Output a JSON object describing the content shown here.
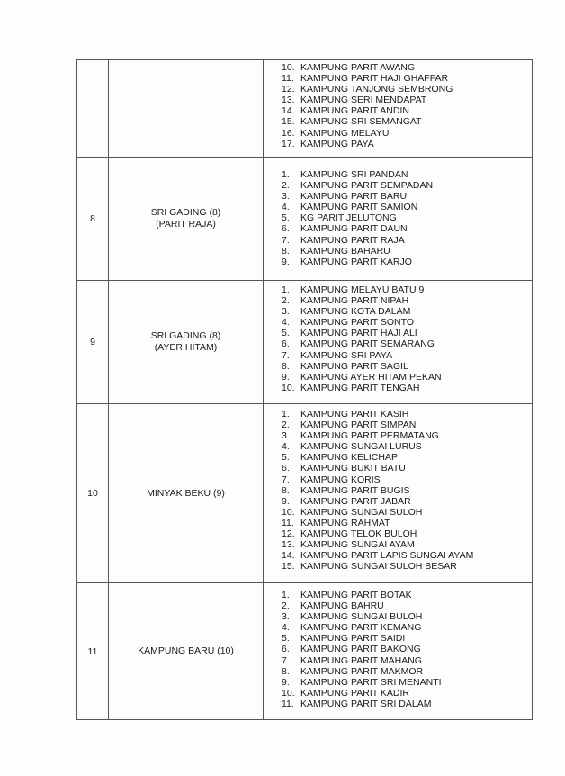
{
  "rows": [
    {
      "no": "",
      "area": [
        "",
        ""
      ],
      "pad": 2,
      "height": 108,
      "villages": [
        [
          "10.",
          "KAMPUNG PARIT AWANG"
        ],
        [
          "11.",
          "KAMPUNG PARIT HAJI GHAFFAR"
        ],
        [
          "12.",
          "KAMPUNG TANJONG SEMBRONG"
        ],
        [
          "13.",
          "KAMPUNG SERI MENDAPAT"
        ],
        [
          "14.",
          "KAMPUNG PARIT ANDIN"
        ],
        [
          "15.",
          "KAMPUNG SRI SEMANGAT"
        ],
        [
          "16.",
          "KAMPUNG MELAYU"
        ],
        [
          "17.",
          "KAMPUNG PAYA"
        ]
      ]
    },
    {
      "no": "8",
      "area": [
        "SRI GADING (8)",
        "(PARIT RAJA)"
      ],
      "pad": 13,
      "height": 137,
      "villages": [
        [
          "1.",
          "KAMPUNG SRI PANDAN"
        ],
        [
          "2.",
          "KAMPUNG PARIT SEMPADAN"
        ],
        [
          "3.",
          "KAMPUNG PARIT BARU"
        ],
        [
          "4.",
          "KAMPUNG PARIT SAMION"
        ],
        [
          "5.",
          "KG PARIT JELUTONG"
        ],
        [
          "6.",
          "KAMPUNG PARIT DAUN"
        ],
        [
          "7.",
          "KAMPUNG PARIT RAJA"
        ],
        [
          "8.",
          "KAMPUNG BAHARU"
        ],
        [
          "9.",
          "KAMPUNG PARIT KARJO"
        ]
      ]
    },
    {
      "no": "9",
      "area": [
        "SRI GADING (8)",
        "(AYER HITAM)"
      ],
      "pad": 4,
      "height": 137,
      "villages": [
        [
          "1.",
          "KAMPUNG MELAYU BATU 9"
        ],
        [
          "2.",
          "KAMPUNG PARIT NIPAH"
        ],
        [
          "3.",
          "KAMPUNG KOTA DALAM"
        ],
        [
          "4.",
          "KAMPUNG PARIT SONTO"
        ],
        [
          "5.",
          "KAMPUNG PARIT HAJI ALI"
        ],
        [
          "6.",
          "KAMPUNG PARIT SEMARANG"
        ],
        [
          "7.",
          "KAMPUNG SRI PAYA"
        ],
        [
          "8.",
          "KAMPUNG PARIT SAGIL"
        ],
        [
          "9.",
          "KAMPUNG AYER HITAM PEKAN"
        ],
        [
          "10.",
          "KAMPUNG PARIT TENGAH"
        ]
      ]
    },
    {
      "no": "10",
      "area": [
        "MINYAK BEKU (9)",
        ""
      ],
      "pad": 5,
      "height": 199,
      "villages": [
        [
          "1.",
          "KAMPUNG PARIT KASIH"
        ],
        [
          "2.",
          "KAMPUNG PARIT SIMPAN"
        ],
        [
          "3.",
          "KAMPUNG PARIT PERMATANG"
        ],
        [
          "4.",
          "KAMPUNG SUNGAI LURUS"
        ],
        [
          "5.",
          "KAMPUNG KELICHAP"
        ],
        [
          "6.",
          "KAMPUNG BUKIT BATU"
        ],
        [
          "7.",
          "KAMPUNG KORIS"
        ],
        [
          "8.",
          "KAMPUNG PARIT BUGIS"
        ],
        [
          "9.",
          "KAMPUNG PARIT JABAR"
        ],
        [
          "10.",
          "KAMPUNG SUNGAI SULOH"
        ],
        [
          "11.",
          "KAMPUNG RAHMAT"
        ],
        [
          "12.",
          "KAMPUNG TELOK BULOH"
        ],
        [
          "13.",
          "KAMPUNG SUNGAI AYAM"
        ],
        [
          "14.",
          "KAMPUNG PARIT LAPIS SUNGAI AYAM"
        ],
        [
          "15.",
          "KAMPUNG SUNGAI SULOH BESAR"
        ]
      ]
    },
    {
      "no": "11",
      "area": [
        "KAMPUNG BARU (10)",
        ""
      ],
      "pad": 7,
      "height": 152,
      "villages": [
        [
          "1.",
          "KAMPUNG PARIT BOTAK"
        ],
        [
          "2.",
          "KAMPUNG BAHRU"
        ],
        [
          "3.",
          "KAMPUNG SUNGAI BULOH"
        ],
        [
          "4.",
          "KAMPUNG PARIT KEMANG"
        ],
        [
          "5.",
          "KAMPUNG PARIT SAIDI"
        ],
        [
          "6.",
          "KAMPUNG PARIT BAKONG"
        ],
        [
          "7.",
          "KAMPUNG PARIT MAHANG"
        ],
        [
          "8.",
          "KAMPUNG PARIT MAKMOR"
        ],
        [
          "9.",
          "KAMPUNG PARIT SRI MENANTI"
        ],
        [
          "10.",
          "KAMPUNG PARIT KADIR"
        ],
        [
          "11.",
          "KAMPUNG PARIT SRI DALAM"
        ]
      ]
    }
  ]
}
